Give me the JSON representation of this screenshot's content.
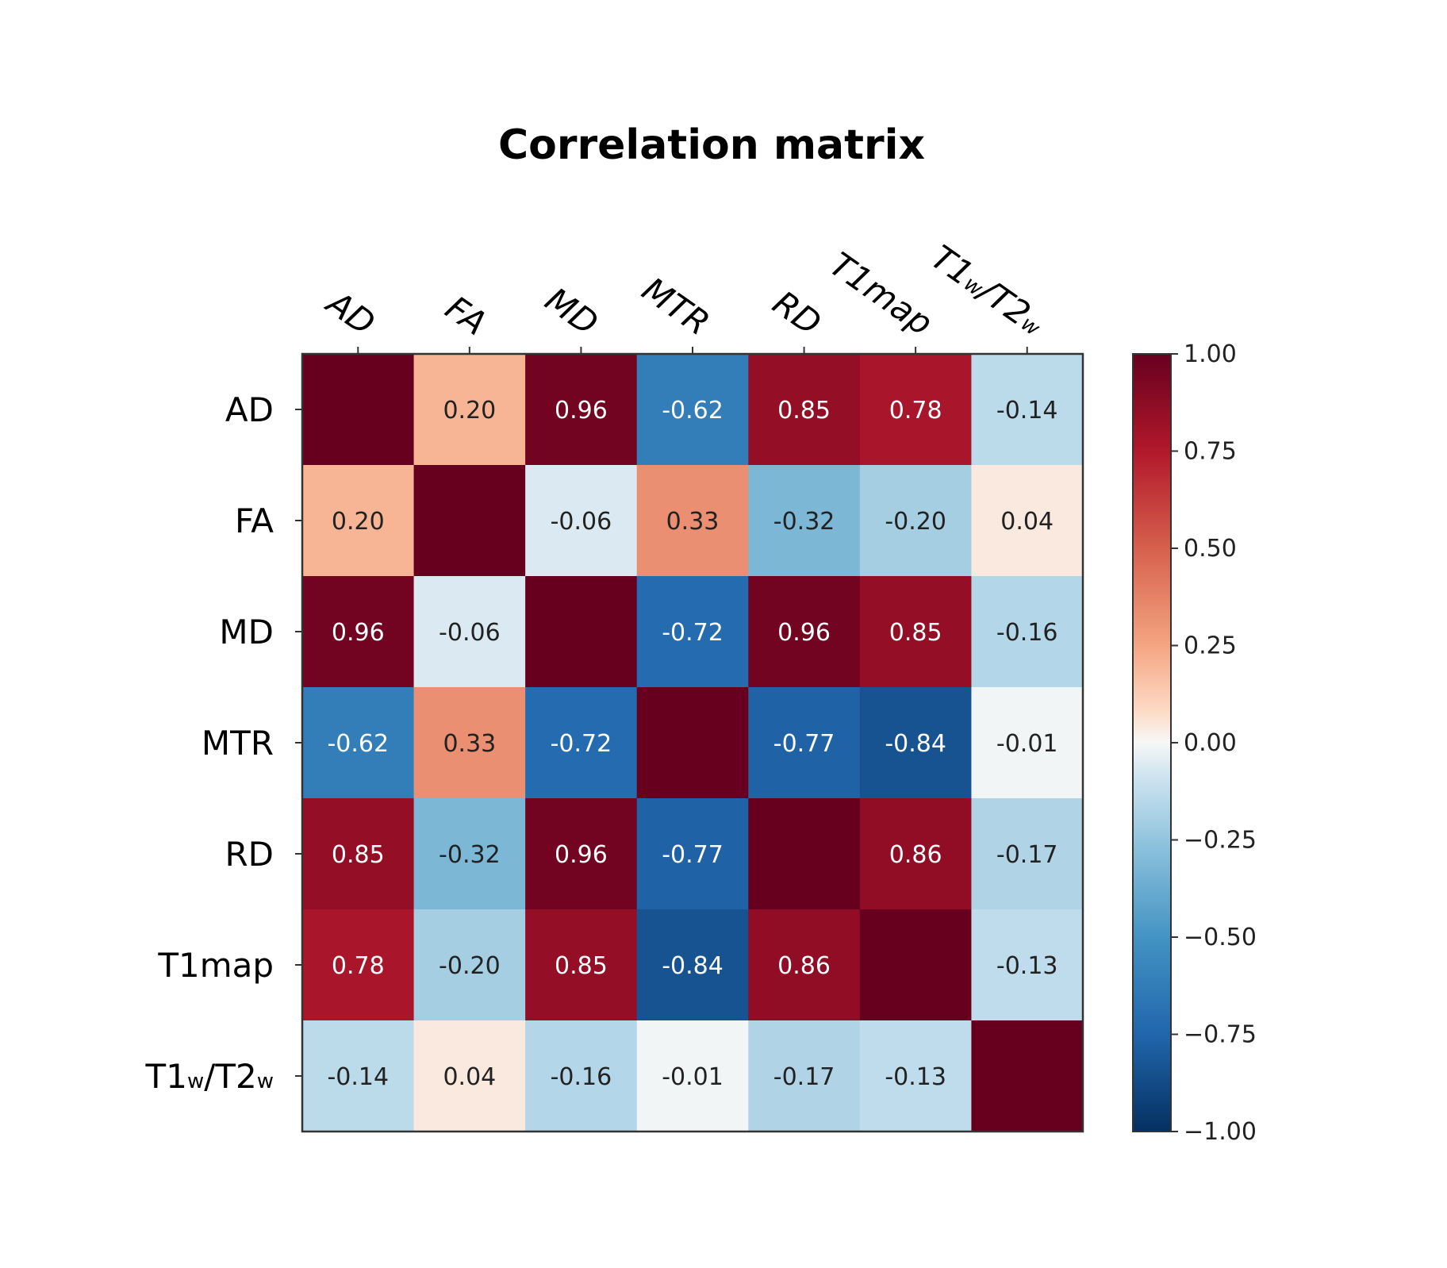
{
  "chart_data": {
    "type": "heatmap",
    "title": "Correlation matrix",
    "variables": [
      {
        "base": "AD",
        "sub1": "",
        "mid": "",
        "sub2": ""
      },
      {
        "base": "FA",
        "sub1": "",
        "mid": "",
        "sub2": ""
      },
      {
        "base": "MD",
        "sub1": "",
        "mid": "",
        "sub2": ""
      },
      {
        "base": "MTR",
        "sub1": "",
        "mid": "",
        "sub2": ""
      },
      {
        "base": "RD",
        "sub1": "",
        "mid": "",
        "sub2": ""
      },
      {
        "base": "T1map",
        "sub1": "",
        "mid": "",
        "sub2": ""
      },
      {
        "base": "T1",
        "sub1": "w",
        "mid": "/T2",
        "sub2": "w"
      }
    ],
    "matrix": [
      [
        1.0,
        0.2,
        0.96,
        -0.62,
        0.85,
        0.78,
        -0.14
      ],
      [
        0.2,
        1.0,
        -0.06,
        0.33,
        -0.32,
        -0.2,
        0.04
      ],
      [
        0.96,
        -0.06,
        1.0,
        -0.72,
        0.96,
        0.85,
        -0.16
      ],
      [
        -0.62,
        0.33,
        -0.72,
        1.0,
        -0.77,
        -0.84,
        -0.01
      ],
      [
        0.85,
        -0.32,
        0.96,
        -0.77,
        1.0,
        0.86,
        -0.17
      ],
      [
        0.78,
        -0.2,
        0.85,
        -0.84,
        0.86,
        1.0,
        -0.13
      ],
      [
        -0.14,
        0.04,
        -0.16,
        -0.01,
        -0.17,
        -0.13,
        1.0
      ]
    ],
    "show_diagonal_labels": false,
    "colormap": "RdBu_r",
    "vmin": -1.0,
    "vmax": 1.0,
    "colorbar_ticks": [
      "1.00",
      "0.75",
      "0.50",
      "0.25",
      "0.00",
      "−0.25",
      "−0.50",
      "−0.75",
      "−1.00"
    ],
    "colorbar_tick_values": [
      1.0,
      0.75,
      0.5,
      0.25,
      0.0,
      -0.25,
      -0.5,
      -0.75,
      -1.0
    ]
  }
}
